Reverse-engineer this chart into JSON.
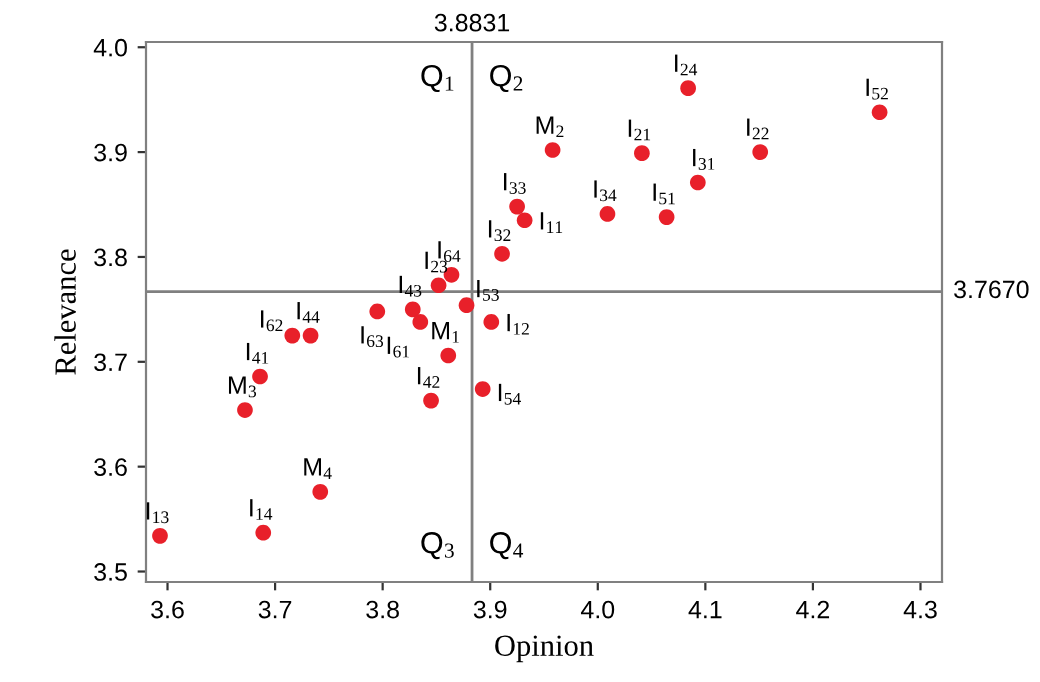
{
  "chart_data": {
    "type": "scatter",
    "xlabel": "Opinion",
    "ylabel": "Relevance",
    "x": [
      4.084,
      4.262,
      4.041,
      4.151,
      4.093,
      4.009,
      4.064,
      3.958,
      3.925,
      3.932,
      3.911,
      3.864,
      3.852,
      3.878,
      3.828,
      3.795,
      3.835,
      3.716,
      3.733,
      3.901,
      3.861,
      3.686,
      3.672,
      3.845,
      3.893,
      3.742,
      3.593,
      3.689
    ],
    "series": [
      {
        "color": "#e8202a",
        "values": [
          3.961,
          3.938,
          3.899,
          3.9,
          3.871,
          3.841,
          3.838,
          3.902,
          3.848,
          3.835,
          3.803,
          3.783,
          3.773,
          3.754,
          3.75,
          3.748,
          3.738,
          3.725,
          3.725,
          3.738,
          3.706,
          3.686,
          3.654,
          3.663,
          3.674,
          3.576,
          3.534,
          3.537
        ]
      }
    ],
    "marker": "circle",
    "xlim": [
      3.58,
      4.32
    ],
    "ylim": [
      3.49,
      4.005
    ],
    "xticks": [
      3.6,
      3.7,
      3.8,
      3.9,
      {
        "value": 4.0,
        "label": "4.0"
      },
      4.1,
      4.2,
      4.3
    ],
    "yticks": [
      3.5,
      3.6,
      3.7,
      3.8,
      3.9,
      {
        "value": 4.0,
        "label": "4.0"
      }
    ],
    "grid": false,
    "ref_lines": [
      {
        "axis": "x",
        "value": 3.8831,
        "label": "3.8831",
        "color": "#808080"
      },
      {
        "axis": "y",
        "value": 3.767,
        "label": "3.7670",
        "color": "#808080"
      }
    ],
    "annotations": [
      {
        "text": "I$_{24}$",
        "x": 4.084,
        "y": 3.961
      },
      {
        "text": "I$_{52}$",
        "x": 4.262,
        "y": 3.938
      },
      {
        "text": "I$_{21}$",
        "x": 4.041,
        "y": 3.899
      },
      {
        "text": "I$_{22}$",
        "x": 4.151,
        "y": 3.9
      },
      {
        "text": "I$_{31}$",
        "x": 4.093,
        "y": 3.871
      },
      {
        "text": "I$_{34}$",
        "x": 4.009,
        "y": 3.841
      },
      {
        "text": "I$_{51}$",
        "x": 4.064,
        "y": 3.838
      },
      {
        "text": "M$_{2}$",
        "x": 3.958,
        "y": 3.902
      },
      {
        "text": "I$_{33}$",
        "x": 3.925,
        "y": 3.848
      },
      {
        "text": "I$_{11}$",
        "x": 3.932,
        "y": 3.835
      },
      {
        "text": "I$_{32}$",
        "x": 3.911,
        "y": 3.803
      },
      {
        "text": "I$_{64}$",
        "x": 3.864,
        "y": 3.783
      },
      {
        "text": "I$_{23}$",
        "x": 3.852,
        "y": 3.773
      },
      {
        "text": "I$_{53}$",
        "x": 3.878,
        "y": 3.754
      },
      {
        "text": "I$_{43}$",
        "x": 3.828,
        "y": 3.75
      },
      {
        "text": "I$_{63}$",
        "x": 3.795,
        "y": 3.748
      },
      {
        "text": "I$_{61}$",
        "x": 3.835,
        "y": 3.738
      },
      {
        "text": "I$_{62}$",
        "x": 3.716,
        "y": 3.725
      },
      {
        "text": "I$_{44}$",
        "x": 3.733,
        "y": 3.725
      },
      {
        "text": "I$_{12}$",
        "x": 3.901,
        "y": 3.738
      },
      {
        "text": "M$_{1}$",
        "x": 3.861,
        "y": 3.706
      },
      {
        "text": "I$_{41}$",
        "x": 3.686,
        "y": 3.686
      },
      {
        "text": "M$_{3}$",
        "x": 3.672,
        "y": 3.654
      },
      {
        "text": "I$_{42}$",
        "x": 3.845,
        "y": 3.663
      },
      {
        "text": "I$_{54}$",
        "x": 3.893,
        "y": 3.674
      },
      {
        "text": "M$_{4}$",
        "x": 3.742,
        "y": 3.576
      },
      {
        "text": "I$_{13}$",
        "x": 3.593,
        "y": 3.534
      },
      {
        "text": "I$_{14}$",
        "x": 3.689,
        "y": 3.537
      },
      "Q$_{1}$",
      "Q$_{2}$",
      "Q$_{3}$",
      "Q$_{4}$"
    ]
  }
}
